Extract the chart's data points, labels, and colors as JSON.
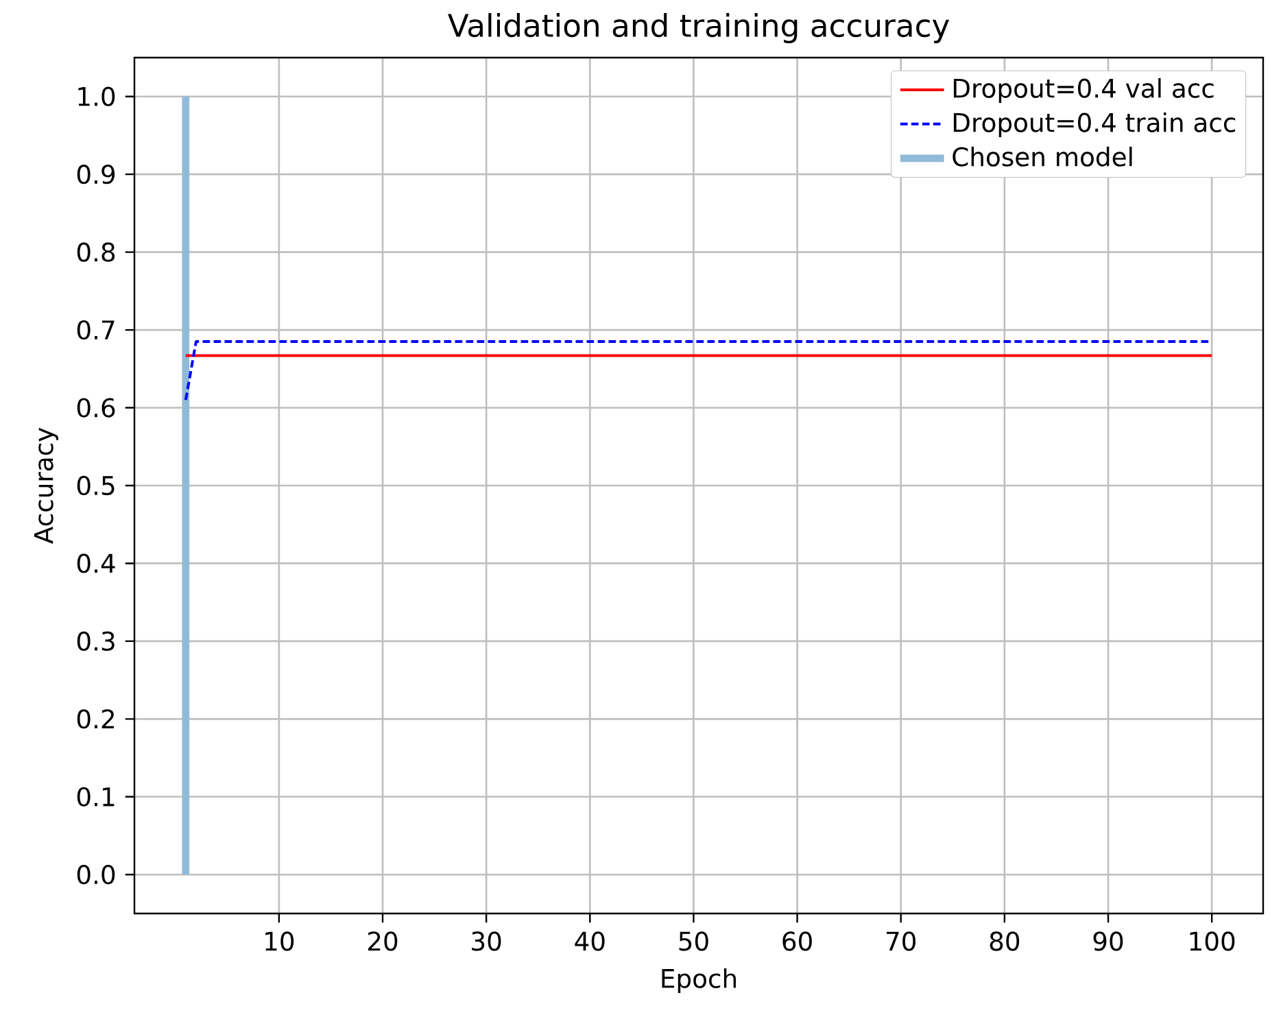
{
  "chart_data": {
    "type": "line",
    "title": "Validation and training accuracy",
    "xlabel": "Epoch",
    "ylabel": "Accuracy",
    "series": [
      {
        "name": "Dropout=0.4 val acc",
        "color": "#ff0000",
        "line_style": "solid",
        "x": [
          1,
          100
        ],
        "values": [
          0.667,
          0.667
        ]
      },
      {
        "name": "Dropout=0.4 train acc",
        "color": "#0000ff",
        "line_style": "dashed",
        "x": [
          1,
          2,
          100
        ],
        "values": [
          0.61,
          0.685,
          0.685
        ]
      },
      {
        "name": "Chosen model",
        "color": "#8fbbd9",
        "line_style": "solid",
        "x": [
          1,
          1
        ],
        "values": [
          0,
          1.0
        ]
      }
    ],
    "xlim": [
      -3.95,
      104.95
    ],
    "ylim": [
      -0.05,
      1.05
    ],
    "xticks": [
      10,
      20,
      30,
      40,
      50,
      60,
      70,
      80,
      90,
      100
    ],
    "yticks": [
      {
        "value": 0,
        "label": "0.0"
      },
      {
        "value": 0.1,
        "label": "0.1"
      },
      {
        "value": 0.2,
        "label": "0.2"
      },
      {
        "value": 0.3,
        "label": "0.3"
      },
      {
        "value": 0.4,
        "label": "0.4"
      },
      {
        "value": 0.5,
        "label": "0.5"
      },
      {
        "value": 0.6,
        "label": "0.6"
      },
      {
        "value": 0.7,
        "label": "0.7"
      },
      {
        "value": 0.8,
        "label": "0.8"
      },
      {
        "value": 0.9,
        "label": "0.9"
      },
      {
        "value": 1.0,
        "label": "1.0"
      }
    ],
    "grid": true,
    "legend": "top right",
    "marker": "none"
  }
}
